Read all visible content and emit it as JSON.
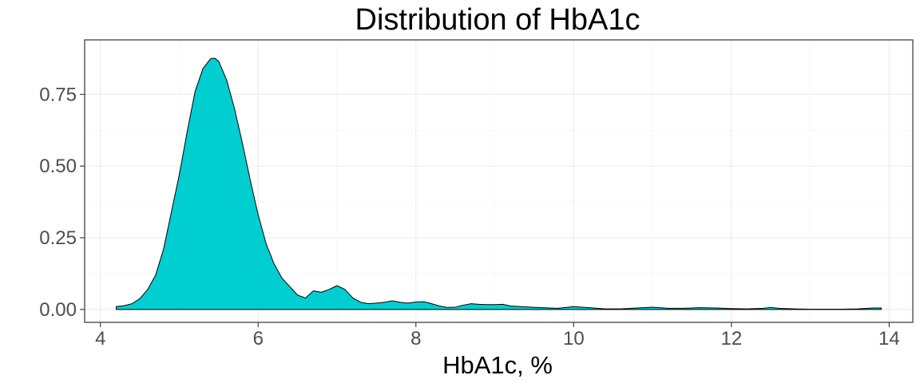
{
  "chart_data": {
    "type": "area",
    "title": "Distribution of HbA1c",
    "xlabel": "HbA1c, %",
    "ylabel": "",
    "xlim": [
      3.8,
      14.3
    ],
    "ylim": [
      -0.045,
      0.94
    ],
    "x_ticks": [
      4,
      6,
      8,
      10,
      12,
      14
    ],
    "x_tick_labels": [
      "4",
      "6",
      "8",
      "10",
      "12",
      "14"
    ],
    "y_ticks": [
      0,
      0.25,
      0.5,
      0.75
    ],
    "y_tick_labels": [
      "0.00",
      "0.25",
      "0.50",
      "0.75"
    ],
    "grid": true,
    "colors": {
      "fill": "#00CED1",
      "stroke": "#000000",
      "panel_border": "#333333"
    },
    "series": [
      {
        "x": [
          4.2,
          4.3,
          4.4,
          4.5,
          4.6,
          4.7,
          4.8,
          4.9,
          5.0,
          5.1,
          5.2,
          5.3,
          5.4,
          5.45,
          5.5,
          5.6,
          5.7,
          5.8,
          5.9,
          6.0,
          6.1,
          6.2,
          6.3,
          6.4,
          6.5,
          6.6,
          6.7,
          6.8,
          6.9,
          7.0,
          7.1,
          7.2,
          7.3,
          7.4,
          7.5,
          7.6,
          7.7,
          7.8,
          7.9,
          8.0,
          8.1,
          8.2,
          8.3,
          8.4,
          8.5,
          8.6,
          8.7,
          8.8,
          8.9,
          9.0,
          9.1,
          9.2,
          9.4,
          9.6,
          9.8,
          10.0,
          10.2,
          10.4,
          10.6,
          10.8,
          11.0,
          11.2,
          11.4,
          11.6,
          11.8,
          12.0,
          12.2,
          12.4,
          12.5,
          12.6,
          12.8,
          13.0,
          13.2,
          13.4,
          13.6,
          13.8,
          13.9
        ],
        "y": [
          0.01,
          0.013,
          0.02,
          0.038,
          0.07,
          0.12,
          0.21,
          0.34,
          0.47,
          0.62,
          0.76,
          0.84,
          0.875,
          0.876,
          0.865,
          0.8,
          0.7,
          0.58,
          0.45,
          0.33,
          0.23,
          0.16,
          0.11,
          0.08,
          0.05,
          0.04,
          0.065,
          0.06,
          0.07,
          0.083,
          0.07,
          0.04,
          0.025,
          0.02,
          0.022,
          0.025,
          0.03,
          0.025,
          0.022,
          0.026,
          0.027,
          0.02,
          0.012,
          0.007,
          0.008,
          0.015,
          0.02,
          0.018,
          0.017,
          0.017,
          0.018,
          0.012,
          0.009,
          0.006,
          0.004,
          0.01,
          0.006,
          0.002,
          0.002,
          0.005,
          0.008,
          0.004,
          0.004,
          0.006,
          0.005,
          0.003,
          0.002,
          0.004,
          0.007,
          0.004,
          0.002,
          0.001,
          0.001,
          0.001,
          0.002,
          0.005,
          0.005
        ]
      }
    ]
  }
}
